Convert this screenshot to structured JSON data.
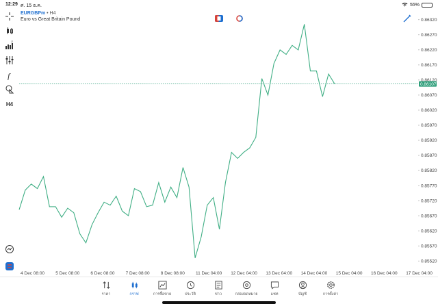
{
  "status": {
    "time": "12:29",
    "date": "ศ. 15 ธ.ค.",
    "battery": "55%",
    "battery_level": 0.55
  },
  "header": {
    "symbol": "EURGBPm",
    "timeframe": "H4",
    "separator": "•",
    "description": "Euro vs Great Britain Pound"
  },
  "toolbar": {
    "items": [
      "crosshair-icon",
      "chart-type-icon",
      "indicators-icon",
      "indicator-settings-icon",
      "function-icon",
      "objects-icon",
      "timeframe-h4"
    ],
    "timeframe_label": "H4"
  },
  "chart_data": {
    "type": "line",
    "symbol": "EURGBPm",
    "timeframe": "H4",
    "color": "#3fae84",
    "current_price": 0.86107,
    "current_price_label": "0.86107",
    "ylim": [
      0.855,
      0.8634
    ],
    "y_ticks": [
      "0.86320",
      "0.86270",
      "0.86220",
      "0.86170",
      "0.86120",
      "0.86070",
      "0.86020",
      "0.85970",
      "0.85920",
      "0.85870",
      "0.85820",
      "0.85770",
      "0.85720",
      "0.85670",
      "0.85620",
      "0.85570",
      "0.85520"
    ],
    "x_ticks": [
      "4 Dec 08:00",
      "5 Dec 08:00",
      "6 Dec 08:00",
      "7 Dec 08:00",
      "8 Dec 08:00",
      "11 Dec 04:00",
      "12 Dec 04:00",
      "13 Dec 04:00",
      "14 Dec 04:00",
      "15 Dec 04:00",
      "16 Dec 04:00",
      "17 Dec 04:00"
    ],
    "values": [
      0.8569,
      0.85755,
      0.85775,
      0.8576,
      0.858,
      0.857,
      0.857,
      0.85665,
      0.85695,
      0.8568,
      0.8561,
      0.8558,
      0.8564,
      0.8568,
      0.85715,
      0.85705,
      0.85735,
      0.85685,
      0.8567,
      0.8576,
      0.8575,
      0.857,
      0.85705,
      0.8578,
      0.85715,
      0.85765,
      0.8573,
      0.8583,
      0.85765,
      0.8553,
      0.856,
      0.85705,
      0.8573,
      0.85625,
      0.8578,
      0.8588,
      0.8586,
      0.8588,
      0.85895,
      0.8593,
      0.86125,
      0.8607,
      0.86175,
      0.8622,
      0.86205,
      0.86235,
      0.8622,
      0.86305,
      0.8615,
      0.8615,
      0.86065,
      0.8614,
      0.86107
    ]
  },
  "tabs": [
    {
      "label": "ราคา",
      "icon": "quotes-icon",
      "active": false
    },
    {
      "label": "กราฟ",
      "icon": "chart-icon",
      "active": true
    },
    {
      "label": "การซื้อขาย",
      "icon": "trade-icon",
      "active": false
    },
    {
      "label": "ประวัติ",
      "icon": "history-icon",
      "active": false
    },
    {
      "label": "ข่าว",
      "icon": "news-icon",
      "active": false
    },
    {
      "label": "กล่องจดหมาย",
      "icon": "mailbox-icon",
      "active": false
    },
    {
      "label": "แชท",
      "icon": "chat-icon",
      "active": false
    },
    {
      "label": "บัญชี",
      "icon": "account-icon",
      "active": false
    },
    {
      "label": "การตั้งค่า",
      "icon": "settings-icon",
      "active": false
    }
  ],
  "colors": {
    "accent": "#1e6fd0",
    "line": "#3fae84",
    "price_tag": "#2e9e7a"
  }
}
